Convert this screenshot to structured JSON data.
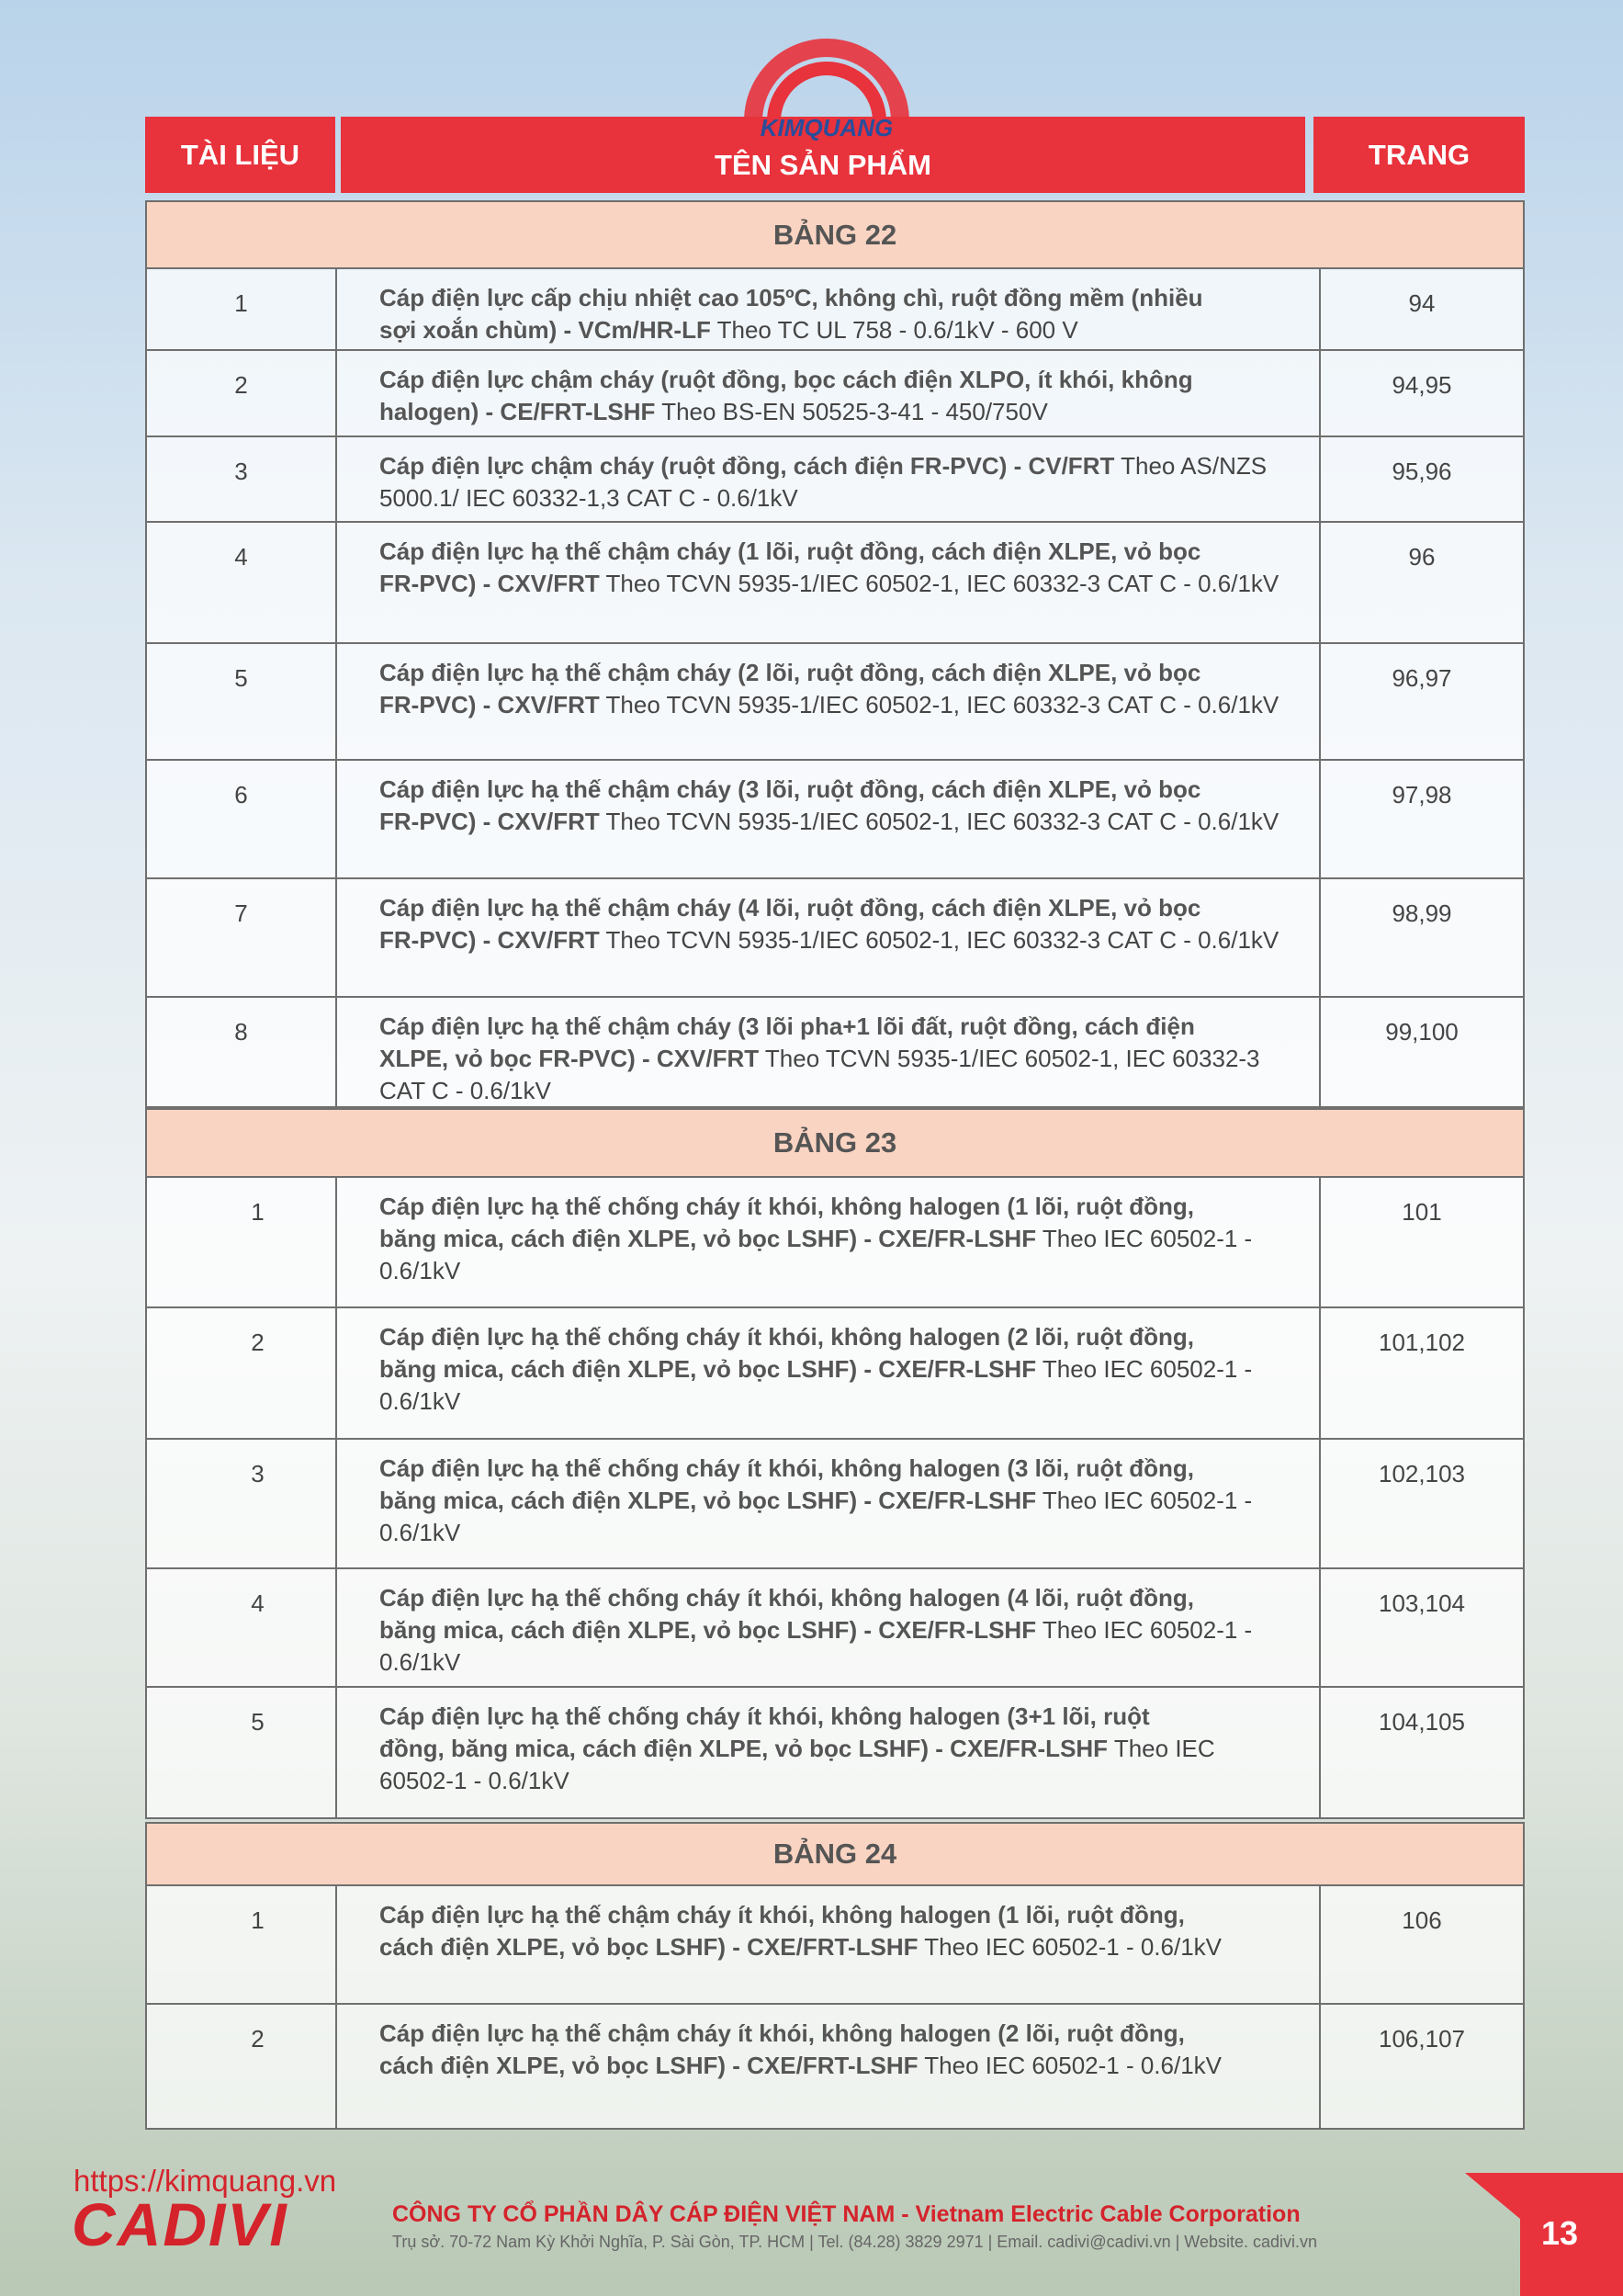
{
  "logo": {
    "brand": "KIMQUANG"
  },
  "header": {
    "col1": "TÀI LIỆU",
    "col2": "TÊN SẢN PHẨM",
    "col3": "TRANG"
  },
  "sections": [
    {
      "title": "BẢNG 22",
      "rows": [
        {
          "no": "1",
          "name": [
            "Cáp điện lực cấp chịu nhiệt cao 105ºC, không chì, ruột đồng mềm (nhiều",
            "sợi xoắn chùm) - VCm/HR-LF"
          ],
          "spec": "Theo TC UL 758 - 0.6/1kV - 600 V",
          "page": "94"
        },
        {
          "no": "2",
          "name": [
            "Cáp điện lực chậm cháy (ruột đồng, bọc cách điện XLPO, ít khói, không",
            "halogen) - CE/FRT-LSHF"
          ],
          "spec": "Theo BS-EN 50525-3-41 - 450/750V",
          "page": "94,95"
        },
        {
          "no": "3",
          "name": [
            "Cáp điện lực chậm cháy (ruột đồng, cách điện FR-PVC) - CV/FRT"
          ],
          "spec": "Theo AS/NZS 5000.1/ IEC 60332-1,3 CAT C - 0.6/1kV",
          "page": "95,96"
        },
        {
          "no": "4",
          "name": [
            "Cáp điện lực hạ thế chậm cháy (1 lõi, ruột đồng, cách điện XLPE, vỏ bọc",
            "FR-PVC) - CXV/FRT"
          ],
          "spec": "Theo TCVN 5935-1/IEC 60502-1, IEC 60332-3 CAT C - 0.6/1kV",
          "page": "96"
        },
        {
          "no": "5",
          "name": [
            "Cáp điện lực hạ thế chậm cháy (2 lõi, ruột đồng, cách điện XLPE, vỏ bọc",
            "FR-PVC) - CXV/FRT"
          ],
          "spec": "Theo TCVN 5935-1/IEC 60502-1, IEC 60332-3 CAT C - 0.6/1kV",
          "page": "96,97"
        },
        {
          "no": "6",
          "name": [
            "Cáp điện lực hạ thế chậm cháy (3 lõi, ruột đồng, cách điện XLPE, vỏ bọc",
            "FR-PVC) - CXV/FRT"
          ],
          "spec": "Theo TCVN 5935-1/IEC 60502-1, IEC 60332-3 CAT C - 0.6/1kV",
          "page": "97,98"
        },
        {
          "no": "7",
          "name": [
            "Cáp điện lực hạ thế chậm cháy (4 lõi, ruột đồng, cách điện XLPE, vỏ bọc",
            "FR-PVC) - CXV/FRT"
          ],
          "spec": "Theo TCVN 5935-1/IEC 60502-1, IEC 60332-3 CAT C - 0.6/1kV",
          "page": "98,99"
        },
        {
          "no": "8",
          "name": [
            "Cáp điện lực hạ thế chậm cháy (3 lõi pha+1 lõi đất, ruột đồng, cách điện",
            "XLPE, vỏ bọc FR-PVC) - CXV/FRT"
          ],
          "spec": "Theo TCVN 5935-1/IEC 60502-1, IEC 60332-3 CAT C - 0.6/1kV",
          "page": "99,100"
        }
      ]
    },
    {
      "title": "BẢNG 23",
      "rows": [
        {
          "no": "1",
          "name": [
            "Cáp điện lực hạ thế chống cháy ít khói, không halogen (1 lõi, ruột đồng,",
            "băng mica, cách điện XLPE, vỏ bọc LSHF) - CXE/FR-LSHF"
          ],
          "spec": "Theo IEC 60502-1 - 0.6/1kV",
          "page": "101"
        },
        {
          "no": "2",
          "name": [
            "Cáp điện lực hạ thế chống cháy ít khói, không halogen (2 lõi, ruột đồng,",
            "băng mica, cách điện XLPE, vỏ bọc LSHF) - CXE/FR-LSHF"
          ],
          "spec": "Theo IEC 60502-1 - 0.6/1kV",
          "page": "101,102"
        },
        {
          "no": "3",
          "name": [
            "Cáp điện lực hạ thế chống cháy ít khói, không halogen (3 lõi, ruột đồng,",
            "băng mica, cách điện XLPE, vỏ bọc LSHF) - CXE/FR-LSHF"
          ],
          "spec": "Theo IEC 60502-1 - 0.6/1kV",
          "page": "102,103"
        },
        {
          "no": "4",
          "name": [
            "Cáp điện lực hạ thế chống cháy ít khói, không halogen (4 lõi, ruột đồng,",
            "băng mica, cách điện XLPE, vỏ bọc LSHF) - CXE/FR-LSHF"
          ],
          "spec": "Theo IEC 60502-1 - 0.6/1kV",
          "page": "103,104"
        },
        {
          "no": "5",
          "name": [
            "Cáp điện lực hạ thế chống cháy ít khói, không halogen (3+1 lõi, ruột",
            "đồng, băng mica, cách điện XLPE, vỏ bọc LSHF) - CXE/FR-LSHF"
          ],
          "spec": "Theo IEC 60502-1 - 0.6/1kV",
          "page": "104,105"
        }
      ]
    },
    {
      "title": "BẢNG 24",
      "rows": [
        {
          "no": "1",
          "name": [
            "Cáp điện lực hạ thế chậm cháy ít khói, không halogen (1 lõi, ruột đồng,",
            "cách điện XLPE, vỏ bọc LSHF) - CXE/FRT-LSHF"
          ],
          "spec": "Theo IEC 60502-1 - 0.6/1kV",
          "page": "106"
        },
        {
          "no": "2",
          "name": [
            "Cáp điện lực hạ thế chậm cháy ít khói, không halogen (2 lõi, ruột đồng,",
            "cách điện XLPE, vỏ bọc LSHF) - CXE/FRT-LSHF"
          ],
          "spec": "Theo IEC 60502-1 - 0.6/1kV",
          "page": "106,107"
        }
      ]
    }
  ],
  "footer": {
    "url": "https://kimquang.vn",
    "brand": "CADIVI",
    "company": "CÔNG TY CỔ PHẦN DÂY CÁP ĐIỆN VIỆT NAM - Vietnam Electric Cable Corporation",
    "address": "Trụ sở. 70-72 Nam Kỳ Khởi Nghĩa, P. Sài Gòn, TP. HCM | Tel. (84.28) 3829 2971 | Email. cadivi@cadivi.vn | Website. cadivi.vn",
    "page_number": "13"
  }
}
